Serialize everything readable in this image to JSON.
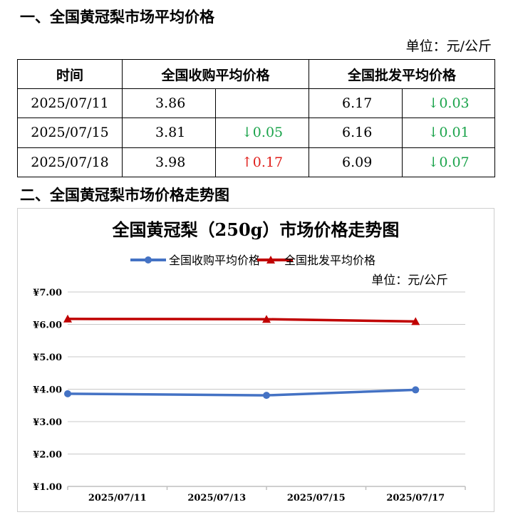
{
  "section1_title": "一、全国黄冠梨市场平均价格",
  "section2_title": "二、全国黄冠梨市场价格走势图",
  "table_unit": "单位：元/公斤",
  "table": {
    "headers": [
      "时间",
      "全国收购平均价格",
      "全国批发平均价格"
    ],
    "rows": [
      {
        "date": "2025/07/11",
        "purchase": "3.86",
        "purchase_change": "",
        "purchase_dir": "",
        "wholesale": "6.17",
        "wholesale_change": "↓0.03",
        "wholesale_dir": "down"
      },
      {
        "date": "2025/07/15",
        "purchase": "3.81",
        "purchase_change": "↓0.05",
        "purchase_dir": "down",
        "wholesale": "6.16",
        "wholesale_change": "↓0.01",
        "wholesale_dir": "down"
      },
      {
        "date": "2025/07/18",
        "purchase": "3.98",
        "purchase_change": "↑0.17",
        "purchase_dir": "up",
        "wholesale": "6.09",
        "wholesale_change": "↓0.07",
        "wholesale_dir": "down"
      }
    ]
  },
  "colors": {
    "purchase": "#4472c4",
    "wholesale": "#c00000",
    "up": "#e0201c",
    "down": "#1aa34a"
  },
  "chart_data": {
    "type": "line",
    "title": "全国黄冠梨（250g）市场价格走势图",
    "unit_label": "单位：元/公斤",
    "legend_position": "top",
    "grid": true,
    "ylim": [
      1.0,
      7.0
    ],
    "yticks": [
      1.0,
      2.0,
      3.0,
      4.0,
      5.0,
      6.0,
      7.0
    ],
    "ytick_labels": [
      "¥1.00",
      "¥2.00",
      "¥3.00",
      "¥4.00",
      "¥5.00",
      "¥6.00",
      "¥7.00"
    ],
    "xlim": [
      "2025/07/11",
      "2025/07/19"
    ],
    "xtick_labels": [
      "2025/07/11",
      "2025/07/13",
      "2025/07/15",
      "2025/07/17"
    ],
    "series": [
      {
        "name": "全国收购平均价格",
        "marker": "circle",
        "color": "#4472c4",
        "x": [
          "2025/07/11",
          "2025/07/15",
          "2025/07/18"
        ],
        "values": [
          3.86,
          3.81,
          3.98
        ]
      },
      {
        "name": "全国批发平均价格",
        "marker": "triangle",
        "color": "#c00000",
        "x": [
          "2025/07/11",
          "2025/07/15",
          "2025/07/18"
        ],
        "values": [
          6.17,
          6.16,
          6.09
        ]
      }
    ]
  }
}
